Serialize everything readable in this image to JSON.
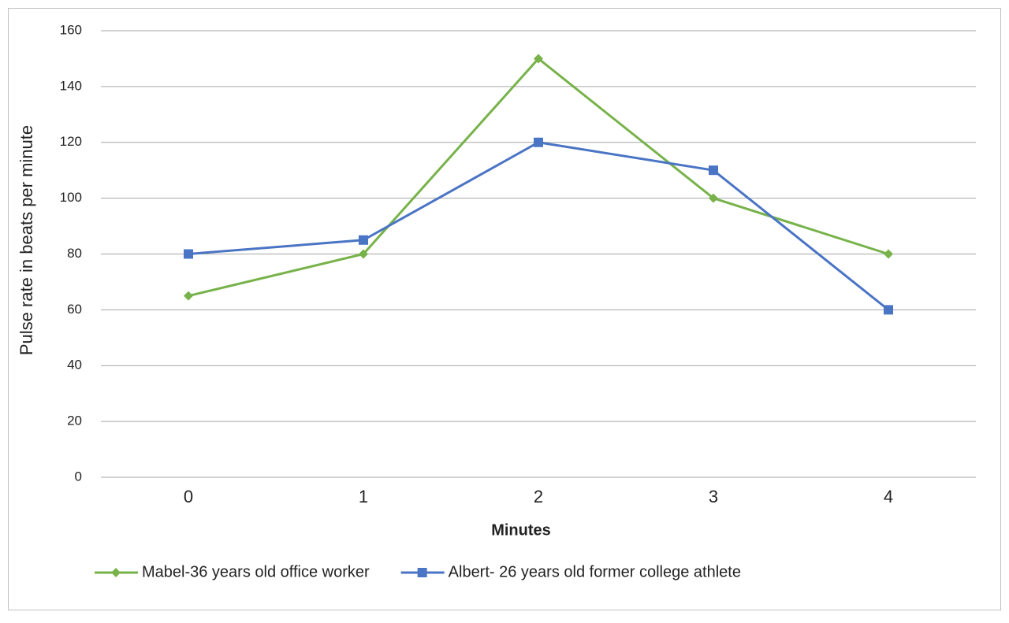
{
  "chart_data": {
    "type": "line",
    "x_label": "Minutes",
    "y_label": "Pulse rate in beats per minute",
    "categories": [
      "0",
      "1",
      "2",
      "3",
      "4"
    ],
    "series": [
      {
        "name": "Mabel-36 years old office worker",
        "color": "#77b24a",
        "marker": "diamond",
        "values": [
          65,
          80,
          150,
          100,
          80
        ]
      },
      {
        "name": "Albert- 26 years old former college athlete",
        "color": "#4a74c4",
        "marker": "square",
        "values": [
          80,
          85,
          120,
          110,
          60
        ]
      }
    ],
    "ylim": [
      0,
      160
    ],
    "yticks": [
      0,
      20,
      40,
      60,
      80,
      100,
      120,
      140,
      160
    ],
    "grid": true,
    "legend": "bottom"
  }
}
